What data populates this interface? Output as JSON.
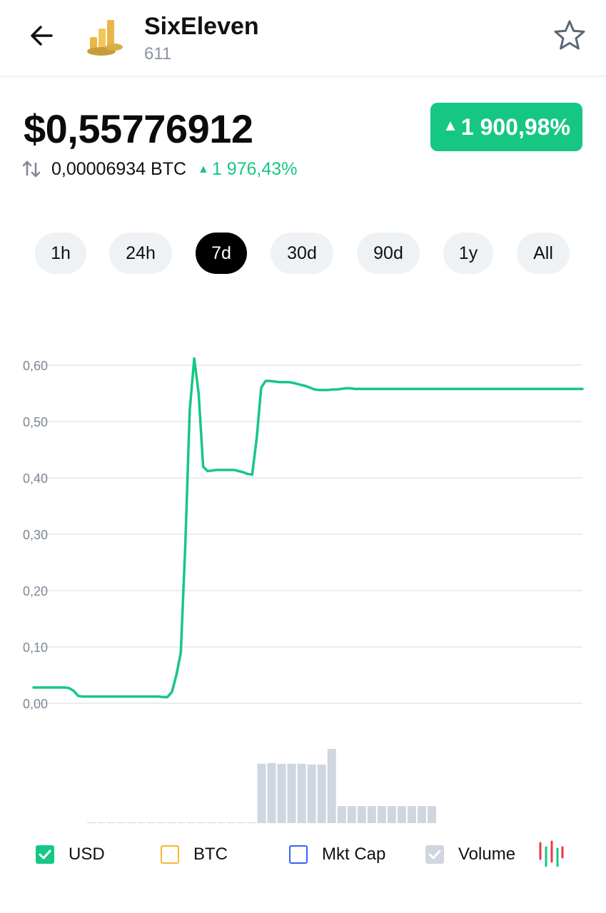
{
  "header": {
    "back_icon": "arrow-left-icon",
    "coin_name": "SixEleven",
    "coin_symbol": "611",
    "star_icon": "star-outline-icon"
  },
  "price": {
    "usd": "$0,55776912",
    "change_percent": "1 900,98%",
    "change_color": "#16c784",
    "btc_price": "0,00006934 BTC",
    "btc_change_percent": "1 976,43%"
  },
  "ranges": [
    {
      "label": "1h",
      "active": false
    },
    {
      "label": "24h",
      "active": false
    },
    {
      "label": "7d",
      "active": true
    },
    {
      "label": "30d",
      "active": false
    },
    {
      "label": "90d",
      "active": false
    },
    {
      "label": "1y",
      "active": false
    },
    {
      "label": "All",
      "active": false
    }
  ],
  "chart_data": {
    "type": "line",
    "y_ticks": [
      "0,60",
      "0,50",
      "0,40",
      "0,30",
      "0,20",
      "0,10",
      "0,00"
    ],
    "ylim": [
      0,
      0.6
    ],
    "grid": true,
    "line_color": "#16c784",
    "series": [
      {
        "values": [
          0.028,
          0.028,
          0.028,
          0.028,
          0.028,
          0.028,
          0.028,
          0.028,
          0.027,
          0.022,
          0.013,
          0.012,
          0.012,
          0.012,
          0.012,
          0.012,
          0.012,
          0.012,
          0.012,
          0.012,
          0.012,
          0.012,
          0.012,
          0.012,
          0.012,
          0.012,
          0.012,
          0.012,
          0.012,
          0.011,
          0.011,
          0.02,
          0.05,
          0.09,
          0.28,
          0.52,
          0.612,
          0.55,
          0.42,
          0.412,
          0.413,
          0.414,
          0.414,
          0.414,
          0.414,
          0.414,
          0.412,
          0.41,
          0.407,
          0.406,
          0.47,
          0.56,
          0.572,
          0.572,
          0.571,
          0.57,
          0.57,
          0.57,
          0.569,
          0.567,
          0.565,
          0.563,
          0.56,
          0.557,
          0.556,
          0.556,
          0.556,
          0.557,
          0.557,
          0.558,
          0.559,
          0.559,
          0.558,
          0.558,
          0.558,
          0.558,
          0.558,
          0.558,
          0.558,
          0.558,
          0.558,
          0.558,
          0.558,
          0.558,
          0.558,
          0.558,
          0.558,
          0.558,
          0.558,
          0.558,
          0.558,
          0.558,
          0.558,
          0.558,
          0.558,
          0.558,
          0.558,
          0.558,
          0.558,
          0.558,
          0.558,
          0.558,
          0.558,
          0.558,
          0.558,
          0.558,
          0.558,
          0.558,
          0.558,
          0.558,
          0.558,
          0.558,
          0.558,
          0.558,
          0.558,
          0.558,
          0.558,
          0.558,
          0.558,
          0.558,
          0.558,
          0.558,
          0.558,
          0.558
        ]
      }
    ],
    "volume": {
      "color": "#cfd6e0",
      "values": [
        0,
        0,
        0,
        0,
        0,
        0.01,
        0.01,
        0.01,
        0.01,
        0.01,
        0.01,
        0.01,
        0.01,
        0,
        0,
        0,
        0.01,
        0.8,
        0.81,
        0.8,
        0.8,
        0.8,
        0.79,
        0.79,
        1.0,
        0.23,
        0.23,
        0.23,
        0.23,
        0.23,
        0.23,
        0.23,
        0.23,
        0.23,
        0.23
      ]
    }
  },
  "legend": [
    {
      "label": "USD",
      "checked": true,
      "color": "#16c784"
    },
    {
      "label": "BTC",
      "checked": false,
      "color": "#f7b731"
    },
    {
      "label": "Mkt Cap",
      "checked": false,
      "color": "#3861fb"
    },
    {
      "label": "Volume",
      "checked": true,
      "color": "#cfd6e0"
    }
  ],
  "candle_icon": "candlestick-icon"
}
